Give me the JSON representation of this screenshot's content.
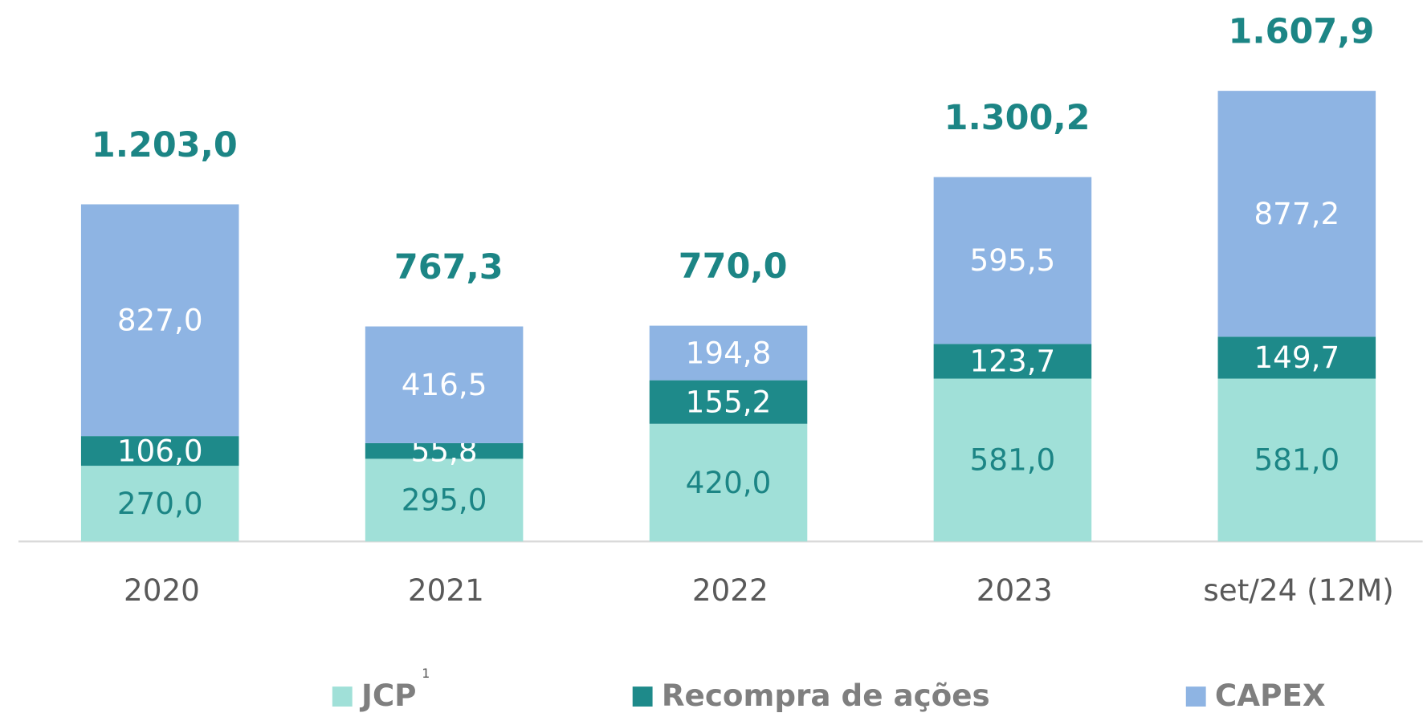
{
  "chart_data": {
    "type": "stacked_bar",
    "categories": [
      "2020",
      "2021",
      "2022",
      "2023",
      "set/24 (12M)"
    ],
    "series": [
      {
        "name": "JCP",
        "footnote": "1",
        "color": "#a0e0d8",
        "label_color": "#1c8585",
        "values": [
          270.0,
          295.0,
          420.0,
          581.0,
          581.0
        ],
        "value_labels": [
          "270,0",
          "295,0",
          "420,0",
          "581,0",
          "581,0"
        ]
      },
      {
        "name": "Recompra de ações",
        "color": "#1e8a8a",
        "label_color": "#ffffff",
        "values": [
          106.0,
          55.8,
          155.2,
          123.7,
          149.7
        ],
        "value_labels": [
          "106,0",
          "55,8",
          "155,2",
          "123,7",
          "149,7"
        ]
      },
      {
        "name": "CAPEX",
        "color": "#8eb4e3",
        "label_color": "#ffffff",
        "values": [
          827.0,
          416.5,
          194.8,
          595.5,
          877.2
        ],
        "value_labels": [
          "827,0",
          "416,5",
          "194,8",
          "595,5",
          "877,2"
        ]
      }
    ],
    "totals": [
      1203.0,
      767.3,
      770.0,
      1300.2,
      1607.9
    ],
    "total_labels": [
      "1.203,0",
      "767,3",
      "770,0",
      "1.300,2",
      "1.607,9"
    ],
    "total_color": "#1c8585"
  }
}
